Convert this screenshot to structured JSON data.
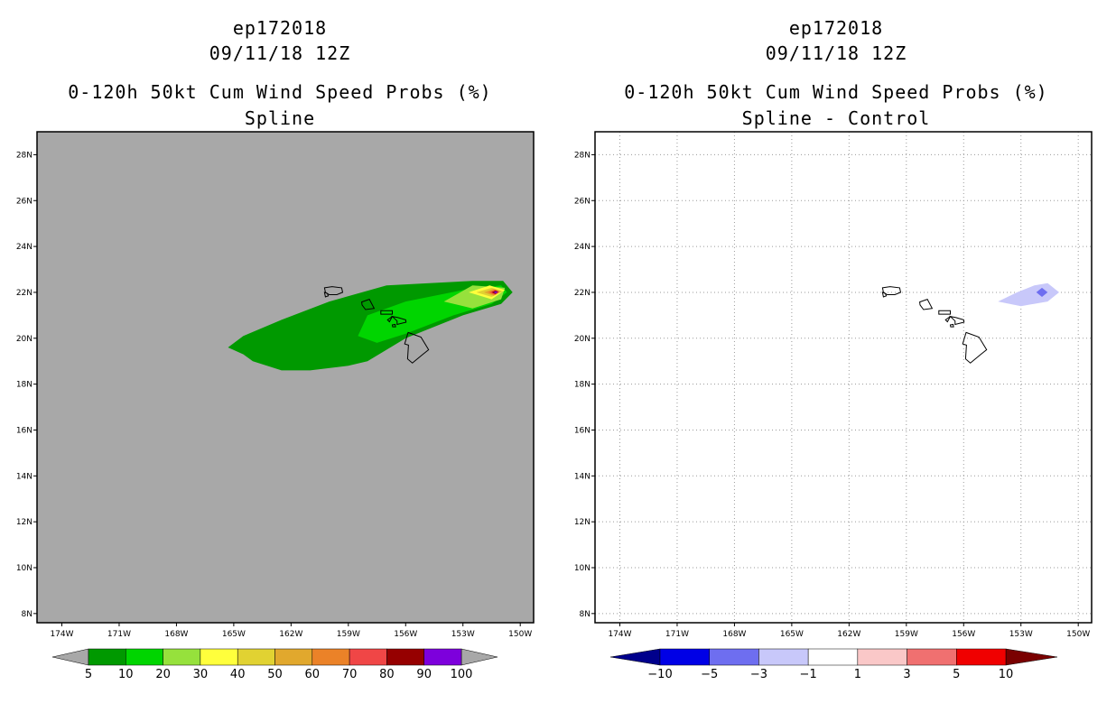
{
  "chart_data": [
    {
      "type": "heatmap",
      "storm_id": "ep172018",
      "datetime": "09/11/18 12Z",
      "title": "0-120h 50kt Cum Wind Speed Probs (%)",
      "subtitle": "Spline",
      "x_ticks": [
        "174W",
        "171W",
        "168W",
        "165W",
        "162W",
        "159W",
        "156W",
        "153W",
        "150W"
      ],
      "y_ticks": [
        "28N",
        "26N",
        "24N",
        "22N",
        "20N",
        "18N",
        "16N",
        "14N",
        "12N",
        "10N",
        "8N"
      ],
      "xlim": [
        -175.3,
        -149.3
      ],
      "ylim": [
        7.6,
        29.0
      ],
      "background": "#a8a8a8",
      "colorbar": {
        "labels": [
          "5",
          "10",
          "20",
          "30",
          "40",
          "50",
          "60",
          "70",
          "80",
          "90",
          "100"
        ],
        "colors": [
          "#009900",
          "#00d500",
          "#96e13c",
          "#ffff3c",
          "#e1d232",
          "#e1a82d",
          "#eb8228",
          "#f04646",
          "#960000",
          "#7d00dc"
        ],
        "lo_color": "#a8a8a8",
        "hi_color": "#a8a8a8"
      },
      "levels": [
        {
          "level": "5-10",
          "color": "#009900",
          "points": [
            [
              -165.3,
              19.6
            ],
            [
              -164.5,
              20.1
            ],
            [
              -162.5,
              20.8
            ],
            [
              -160,
              21.6
            ],
            [
              -157,
              22.3
            ],
            [
              -152.5,
              22.5
            ],
            [
              -150.9,
              22.5
            ],
            [
              -150.4,
              22
            ],
            [
              -151,
              21.5
            ],
            [
              -153,
              21
            ],
            [
              -156,
              20
            ],
            [
              -158,
              19
            ],
            [
              -159,
              18.8
            ],
            [
              -161,
              18.6
            ],
            [
              -162.5,
              18.6
            ],
            [
              -164,
              19
            ],
            [
              -164.5,
              19.3
            ]
          ]
        },
        {
          "level": "10-20",
          "color": "#00d500",
          "points": [
            [
              -158.5,
              20.1
            ],
            [
              -158,
              21
            ],
            [
              -156,
              21.6
            ],
            [
              -153,
              22.1
            ],
            [
              -151,
              22.3
            ],
            [
              -150.7,
              22
            ],
            [
              -151.5,
              21.5
            ],
            [
              -153.5,
              21
            ],
            [
              -156,
              20.2
            ],
            [
              -157.5,
              19.8
            ]
          ]
        },
        {
          "level": "20-30",
          "color": "#96e13c",
          "points": [
            [
              -154,
              21.6
            ],
            [
              -152.5,
              22.3
            ],
            [
              -150.8,
              22.2
            ],
            [
              -151,
              21.7
            ],
            [
              -152.5,
              21.3
            ]
          ]
        },
        {
          "level": "30-40",
          "color": "#ffff3c",
          "points": [
            [
              -152.7,
              22
            ],
            [
              -151.6,
              22.3
            ],
            [
              -150.8,
              22.1
            ],
            [
              -151.5,
              21.7
            ]
          ]
        },
        {
          "level": "40-50",
          "color": "#e1d232",
          "points": [
            [
              -152.3,
              22
            ],
            [
              -151.5,
              22.2
            ],
            [
              -150.9,
              22.05
            ],
            [
              -151.5,
              21.8
            ]
          ]
        },
        {
          "level": "50-60",
          "color": "#e1a82d",
          "points": [
            [
              -151.9,
              22
            ],
            [
              -151.4,
              22.15
            ],
            [
              -151.0,
              22.05
            ],
            [
              -151.4,
              21.85
            ]
          ]
        },
        {
          "level": "60-70",
          "color": "#eb8228",
          "points": [
            [
              -151.7,
              22
            ],
            [
              -151.35,
              22.12
            ],
            [
              -151.1,
              22.03
            ],
            [
              -151.35,
              21.88
            ]
          ]
        },
        {
          "level": "70-80",
          "color": "#f04646",
          "points": [
            [
              -151.6,
              22
            ],
            [
              -151.3,
              22.1
            ],
            [
              -151.1,
              22.02
            ],
            [
              -151.3,
              21.9
            ]
          ]
        },
        {
          "level": "80-90",
          "color": "#960000",
          "points": [
            [
              -151.5,
              22
            ],
            [
              -151.3,
              22.08
            ],
            [
              -151.15,
              22.02
            ],
            [
              -151.3,
              21.93
            ]
          ]
        },
        {
          "level": "90-100",
          "color": "#7d00dc",
          "points": [
            [
              -151.4,
              22
            ],
            [
              -151.28,
              22.05
            ],
            [
              -151.18,
              22.0
            ],
            [
              -151.28,
              21.96
            ]
          ]
        }
      ]
    },
    {
      "type": "heatmap",
      "storm_id": "ep172018",
      "datetime": "09/11/18 12Z",
      "title": "0-120h 50kt Cum Wind Speed Probs (%)",
      "subtitle": "Spline - Control",
      "x_ticks": [
        "174W",
        "171W",
        "168W",
        "165W",
        "162W",
        "159W",
        "156W",
        "153W",
        "150W"
      ],
      "y_ticks": [
        "28N",
        "26N",
        "24N",
        "22N",
        "20N",
        "18N",
        "16N",
        "14N",
        "12N",
        "10N",
        "8N"
      ],
      "xlim": [
        -175.3,
        -149.3
      ],
      "ylim": [
        7.6,
        29.0
      ],
      "background": "#ffffff",
      "grid": true,
      "colorbar": {
        "labels": [
          "−10",
          "−5",
          "−3",
          "−1",
          "1",
          "3",
          "5",
          "10"
        ],
        "colors": [
          "#0000e6",
          "#6e6ef0",
          "#c8c8fa",
          "#ffffff",
          "#fac8c8",
          "#f07070",
          "#f00000"
        ],
        "lo_color": "#00008c",
        "hi_color": "#7a0000"
      },
      "levels": [
        {
          "level": "-3 to -1",
          "color": "#c8c8fa",
          "points": [
            [
              -154.2,
              21.6
            ],
            [
              -153.2,
              22
            ],
            [
              -152.3,
              22.3
            ],
            [
              -151.6,
              22.4
            ],
            [
              -151,
              22
            ],
            [
              -151.6,
              21.6
            ],
            [
              -153,
              21.4
            ]
          ]
        },
        {
          "level": "-5 to -3",
          "color": "#6e6ef0",
          "points": [
            [
              -152.2,
              22
            ],
            [
              -151.9,
              22.2
            ],
            [
              -151.6,
              22
            ],
            [
              -151.9,
              21.8
            ]
          ]
        }
      ]
    }
  ],
  "islands": [
    [
      [
        -160.25,
        22.2
      ],
      [
        -159.85,
        22.25
      ],
      [
        -159.35,
        22.2
      ],
      [
        -159.3,
        22.0
      ],
      [
        -159.6,
        21.9
      ],
      [
        -160.0,
        21.9
      ],
      [
        -160.2,
        22.0
      ]
    ],
    [
      [
        -160.25,
        22.0
      ],
      [
        -160.1,
        21.95
      ],
      [
        -160.05,
        21.85
      ],
      [
        -160.2,
        21.8
      ]
    ],
    [
      [
        -158.3,
        21.58
      ],
      [
        -157.9,
        21.7
      ],
      [
        -157.65,
        21.3
      ],
      [
        -158.1,
        21.25
      ],
      [
        -158.28,
        21.45
      ]
    ],
    [
      [
        -157.3,
        21.2
      ],
      [
        -156.7,
        21.2
      ],
      [
        -156.7,
        21.05
      ],
      [
        -157.3,
        21.05
      ]
    ],
    [
      [
        -156.7,
        20.95
      ],
      [
        -156.95,
        20.8
      ],
      [
        -156.85,
        20.72
      ]
    ],
    [
      [
        -156.7,
        20.95
      ],
      [
        -156.4,
        20.9
      ],
      [
        -156.0,
        20.8
      ],
      [
        -155.98,
        20.7
      ],
      [
        -156.45,
        20.6
      ],
      [
        -156.45,
        20.75
      ]
    ],
    [
      [
        -156.7,
        20.58
      ],
      [
        -156.55,
        20.6
      ],
      [
        -156.53,
        20.5
      ],
      [
        -156.68,
        20.5
      ]
    ],
    [
      [
        -155.87,
        20.25
      ],
      [
        -155.2,
        20.05
      ],
      [
        -154.8,
        19.5
      ],
      [
        -155.1,
        19.3
      ],
      [
        -155.65,
        18.92
      ],
      [
        -155.9,
        19.1
      ],
      [
        -155.85,
        19.7
      ],
      [
        -156.05,
        19.75
      ]
    ]
  ]
}
